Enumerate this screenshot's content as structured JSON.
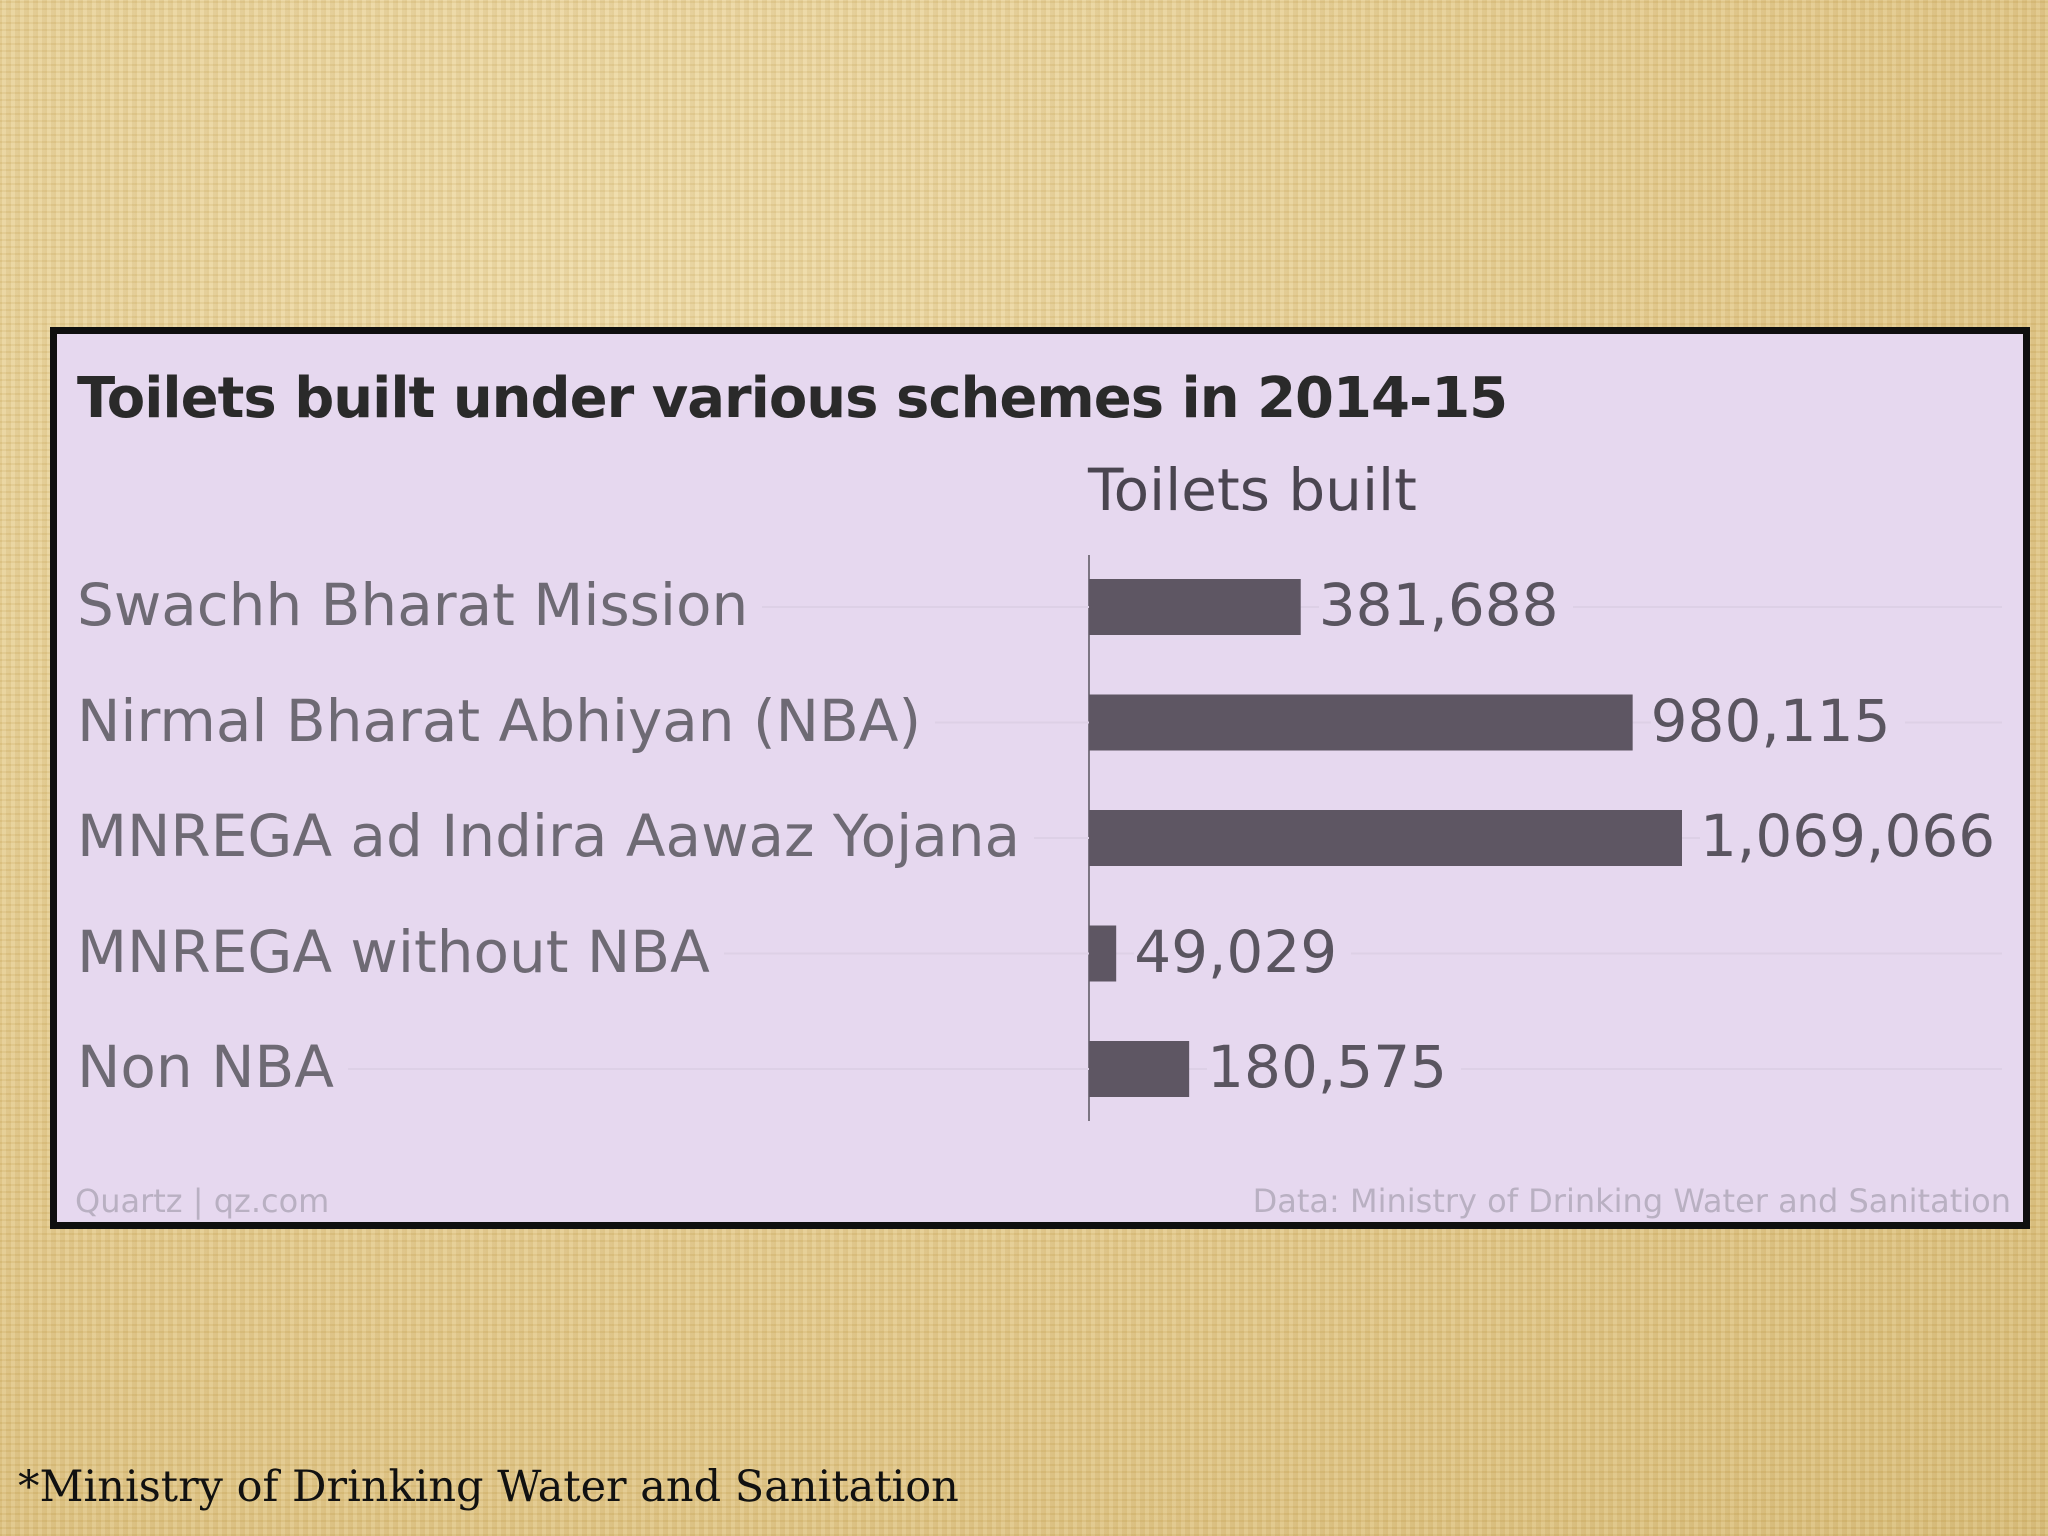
{
  "chart_data": {
    "type": "bar",
    "orientation": "horizontal",
    "title": "Toilets built under various schemes in 2014-15",
    "column_header": "Toilets built",
    "categories": [
      "Swachh Bharat Mission",
      "Nirmal Bharat Abhiyan (NBA)",
      "MNREGA ad Indira Aawaz Yojana",
      "MNREGA without NBA",
      "Non NBA"
    ],
    "values": [
      381688,
      980115,
      1069066,
      49029,
      180575
    ],
    "value_labels": [
      "381,688",
      "980,115",
      "1,069,066",
      "49,029",
      "180,575"
    ],
    "xlim": [
      0,
      1069066
    ],
    "grid": false,
    "bar_color": "#5e5663"
  },
  "footer": {
    "source_left": "Quartz | qz.com",
    "source_right": "Data: Ministry of Drinking Water and Sanitation"
  },
  "note": "*Ministry of Drinking Water and Sanitation",
  "colors": {
    "panel_background": "#e6d8ef",
    "frame_border": "#0f0f0f",
    "page_background": "#e8d49a"
  }
}
